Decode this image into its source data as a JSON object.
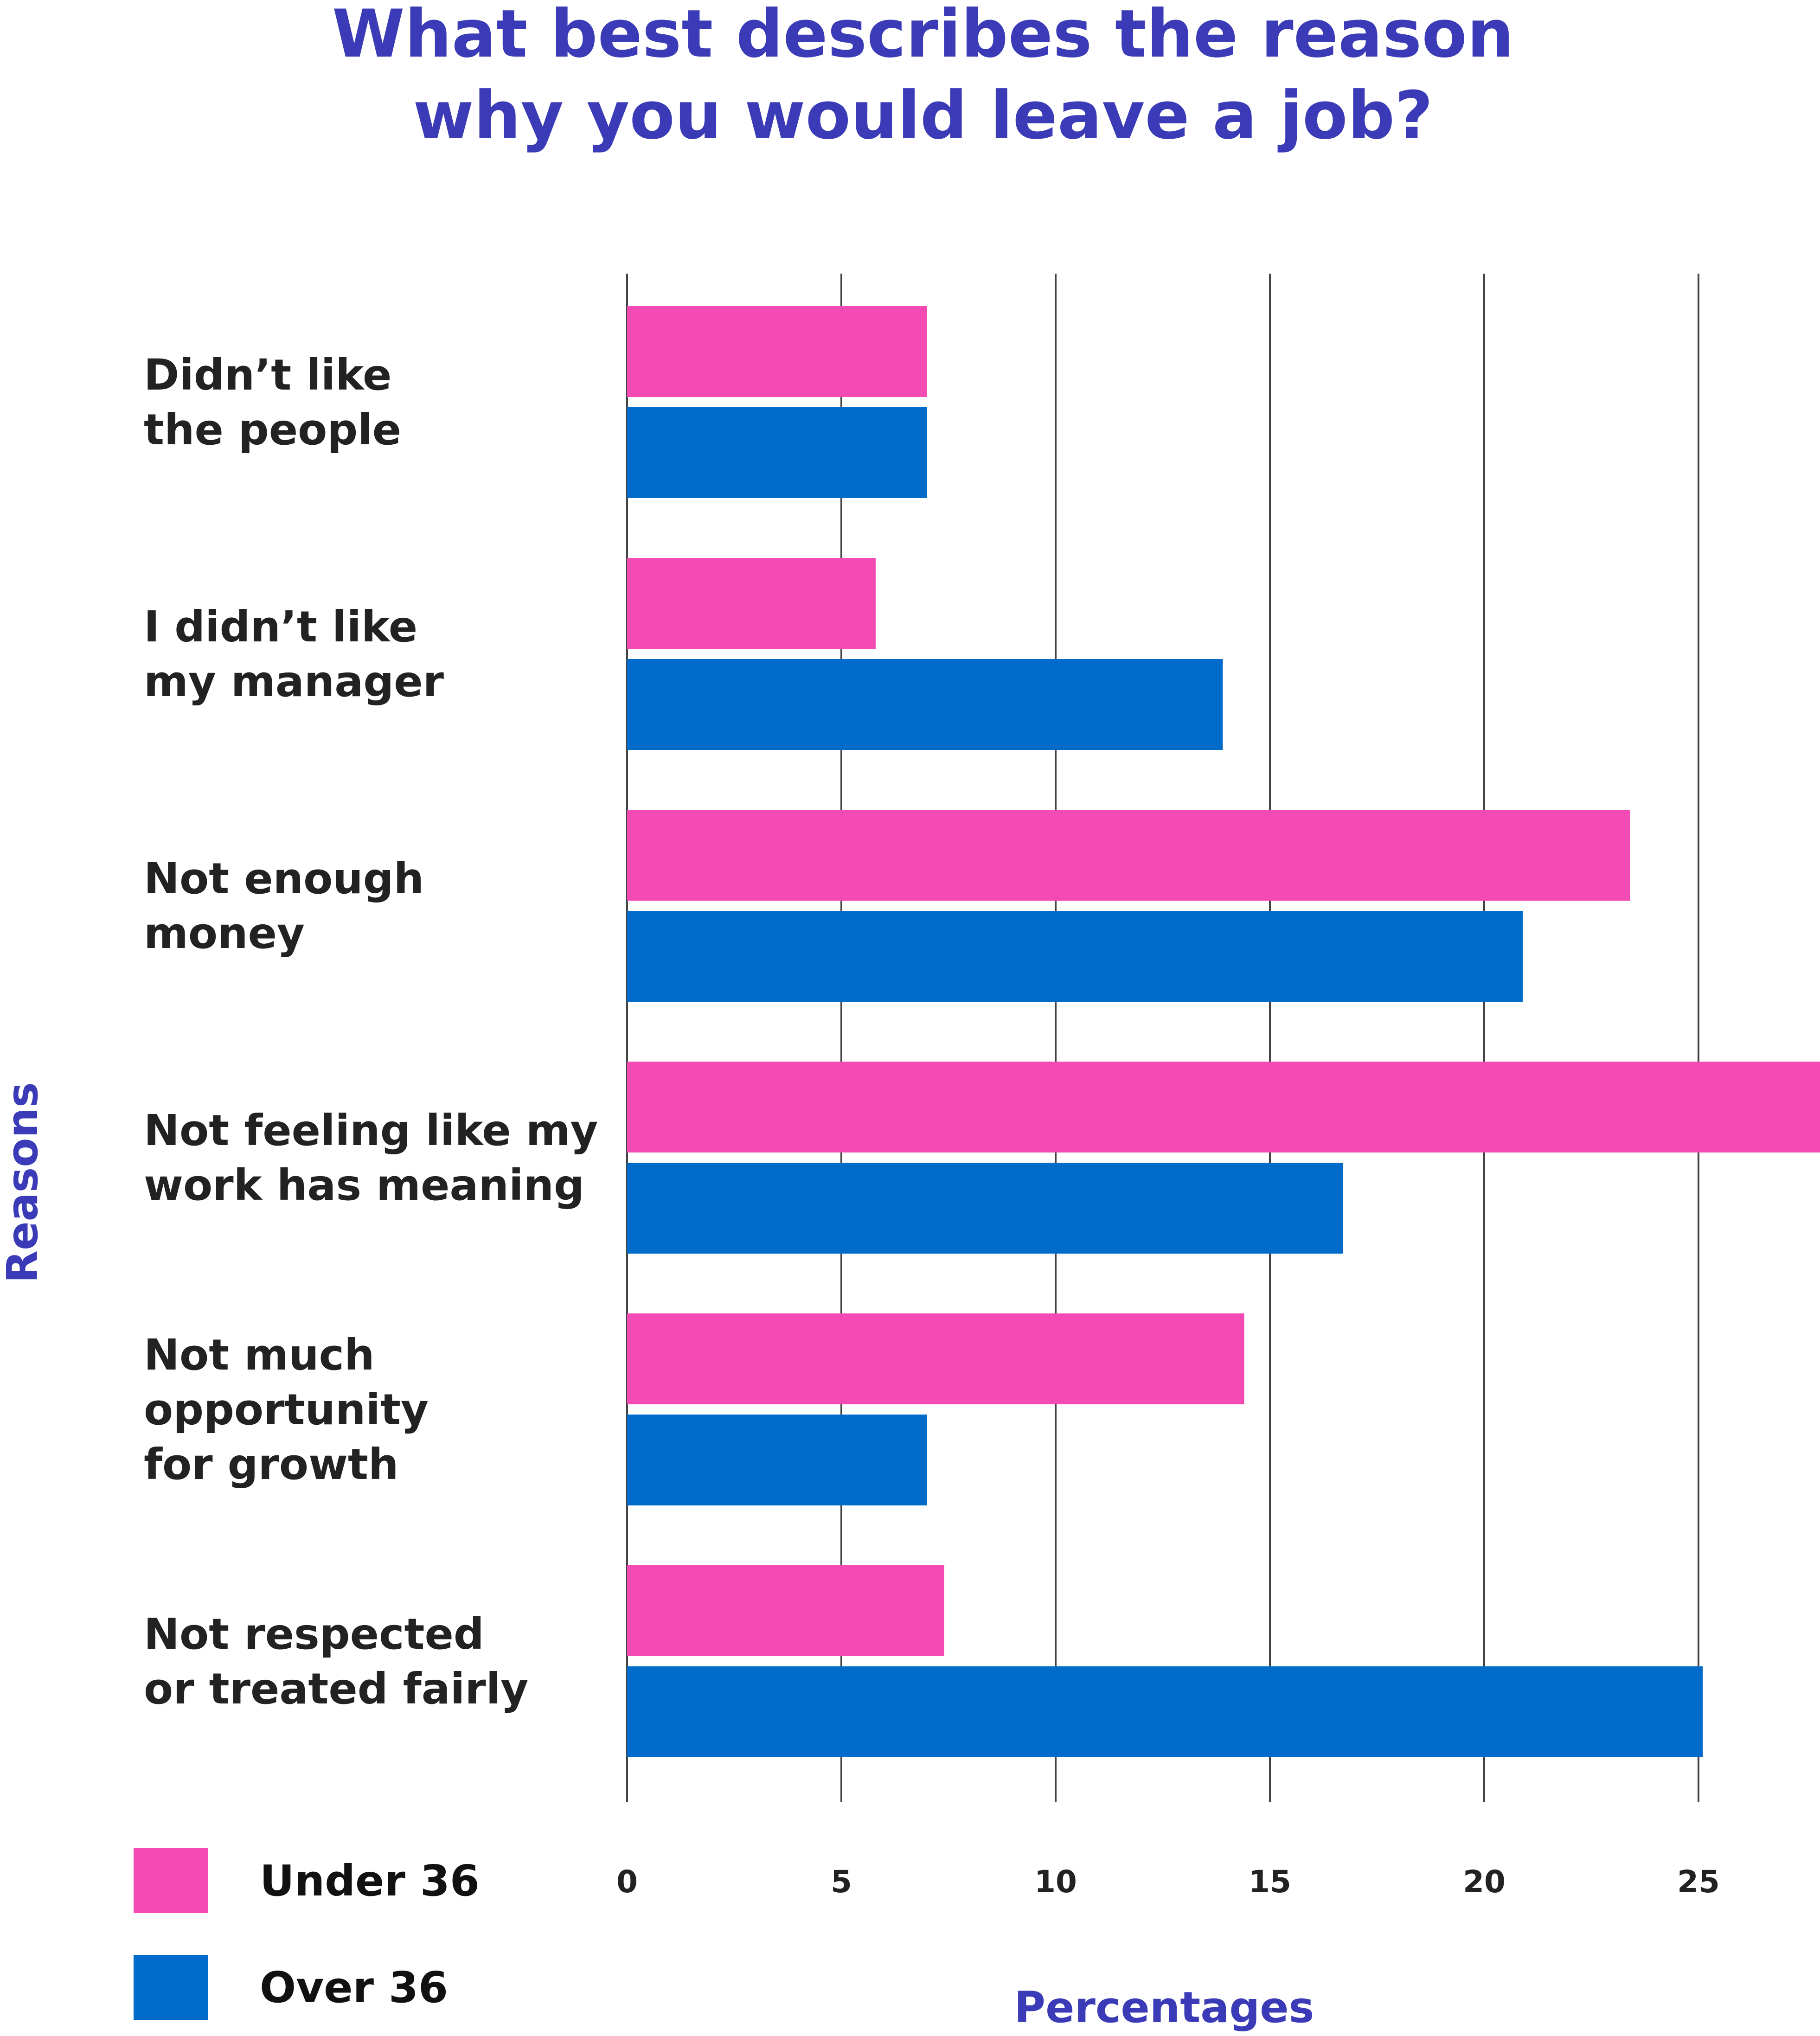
{
  "chart_data": {
    "type": "bar",
    "orientation": "horizontal",
    "title_lines": [
      "What best describes the reason",
      "why you would leave a job?"
    ],
    "xlabel": "Percentages",
    "ylabel": "Reasons",
    "categories": [
      [
        "Didn’t like",
        "the people"
      ],
      [
        "I didn’t like",
        "my manager"
      ],
      [
        "Not enough",
        "money"
      ],
      [
        "Not feeling like my",
        "work has meaning"
      ],
      [
        "Not much",
        "opportunity",
        "for growth"
      ],
      [
        "Not respected",
        "or treated fairly"
      ]
    ],
    "series": [
      {
        "name": "Under 36",
        "color": "#f44ab4",
        "values": [
          7.0,
          5.8,
          23.4,
          28.0,
          14.4,
          7.4
        ]
      },
      {
        "name": "Over 36",
        "color": "#006bc8",
        "values": [
          7.0,
          13.9,
          20.9,
          16.7,
          7.0,
          25.1
        ]
      }
    ],
    "xticks": [
      0,
      5,
      10,
      15,
      20,
      25
    ],
    "xlim": [
      0,
      28
    ],
    "grid": true,
    "legend_position": "bottom-left"
  }
}
